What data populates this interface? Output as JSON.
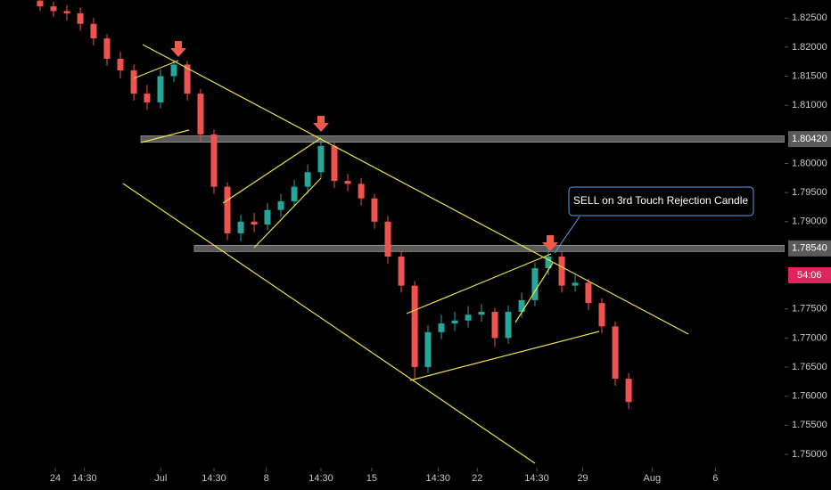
{
  "chart_data": {
    "type": "candlestick",
    "x": [
      -1.01,
      -0.12,
      0.77,
      1.66,
      2.54,
      3.43,
      4.32,
      5.21,
      6.09,
      6.98,
      7.87,
      8.76,
      9.64,
      10.53,
      11.42,
      12.31,
      13.2,
      14.08,
      14.97,
      15.86,
      16.75,
      17.63,
      18.52,
      19.41,
      20.3,
      21.18,
      22.07,
      22.96,
      23.85,
      24.73,
      25.62,
      26.51,
      27.4,
      28.28,
      29.17,
      30.06,
      30.95,
      31.83,
      32.72,
      33.61,
      34.5,
      35.38,
      36.27,
      37.16,
      38.05
    ],
    "open": [
      1.828,
      1.827,
      1.8262,
      1.8258,
      1.824,
      1.8215,
      1.818,
      1.816,
      1.812,
      1.8105,
      1.815,
      1.817,
      1.812,
      1.805,
      1.796,
      1.788,
      1.79,
      1.7895,
      1.792,
      1.7935,
      1.796,
      1.7985,
      1.803,
      1.797,
      1.7965,
      1.794,
      1.79,
      1.784,
      1.779,
      1.765,
      1.771,
      1.7725,
      1.773,
      1.774,
      1.7745,
      1.77,
      1.7745,
      1.7765,
      1.782,
      1.784,
      1.779,
      1.7795,
      1.776,
      1.772,
      1.763
    ],
    "high": [
      1.8281,
      1.8278,
      1.8272,
      1.8268,
      1.825,
      1.8222,
      1.8192,
      1.817,
      1.8135,
      1.8162,
      1.8178,
      1.8176,
      1.8128,
      1.8058,
      1.7968,
      1.7912,
      1.7915,
      1.7932,
      1.7948,
      1.7972,
      1.7998,
      1.8042,
      1.8036,
      1.7982,
      1.7975,
      1.7948,
      1.791,
      1.7848,
      1.7798,
      1.7722,
      1.774,
      1.7745,
      1.7755,
      1.7758,
      1.7752,
      1.7756,
      1.7778,
      1.783,
      1.7858,
      1.7848,
      1.7808,
      1.7802,
      1.7768,
      1.7728,
      1.764
    ],
    "low": [
      1.8262,
      1.8252,
      1.8246,
      1.8228,
      1.8203,
      1.8168,
      1.8146,
      1.8108,
      1.8092,
      1.8095,
      1.814,
      1.8108,
      1.8038,
      1.7948,
      1.7868,
      1.7866,
      1.7882,
      1.7885,
      1.7908,
      1.7925,
      1.7948,
      1.7975,
      1.7958,
      1.7952,
      1.7928,
      1.7888,
      1.7828,
      1.7778,
      1.7628,
      1.764,
      1.7698,
      1.7712,
      1.7718,
      1.7728,
      1.7685,
      1.769,
      1.7735,
      1.7755,
      1.7808,
      1.7778,
      1.778,
      1.7748,
      1.7708,
      1.7618,
      1.7578
    ],
    "close": [
      1.827,
      1.8262,
      1.8258,
      1.824,
      1.8215,
      1.818,
      1.816,
      1.812,
      1.8105,
      1.815,
      1.817,
      1.812,
      1.805,
      1.796,
      1.788,
      1.79,
      1.7895,
      1.792,
      1.7935,
      1.796,
      1.7985,
      1.803,
      1.797,
      1.7965,
      1.794,
      1.79,
      1.784,
      1.779,
      1.765,
      1.771,
      1.7725,
      1.773,
      1.774,
      1.7745,
      1.77,
      1.7745,
      1.7765,
      1.782,
      1.784,
      1.779,
      1.7795,
      1.776,
      1.772,
      1.763,
      1.759
    ],
    "up_color": "#26a69a",
    "down_color": "#ef5350",
    "xlim": [
      -3.67,
      48.4
    ],
    "xticks": [
      {
        "value": 0,
        "label": "24"
      },
      {
        "value": 1.94,
        "label": "14:30"
      },
      {
        "value": 7,
        "label": "Jul"
      },
      {
        "value": 10.53,
        "label": "14:30"
      },
      {
        "value": 14,
        "label": "8"
      },
      {
        "value": 17.63,
        "label": "14:30"
      },
      {
        "value": 21,
        "label": "15"
      },
      {
        "value": 25.4,
        "label": "14:30"
      },
      {
        "value": 28,
        "label": "22"
      },
      {
        "value": 31.95,
        "label": "14:30"
      },
      {
        "value": 35,
        "label": "29"
      },
      {
        "value": 39.6,
        "label": "Aug"
      },
      {
        "value": 43.8,
        "label": "6"
      }
    ],
    "ylim": [
      1.7477,
      1.8281
    ],
    "yticks": [
      {
        "value": 1.825,
        "label": "1.82500"
      },
      {
        "value": 1.82,
        "label": "1.82000"
      },
      {
        "value": 1.815,
        "label": "1.81500"
      },
      {
        "value": 1.81,
        "label": "1.81000"
      },
      {
        "value": 1.8,
        "label": "1.80000"
      },
      {
        "value": 1.795,
        "label": "1.79500"
      },
      {
        "value": 1.79,
        "label": "1.79000"
      },
      {
        "value": 1.775,
        "label": "1.77500"
      },
      {
        "value": 1.77,
        "label": "1.77000"
      },
      {
        "value": 1.765,
        "label": "1.76500"
      },
      {
        "value": 1.76,
        "label": "1.76000"
      },
      {
        "value": 1.755,
        "label": "1.75500"
      },
      {
        "value": 1.75,
        "label": "1.75000"
      }
    ],
    "levels": [
      {
        "value": 1.8042,
        "label": "1.80420"
      },
      {
        "value": 1.7854,
        "label": "1.78540"
      }
    ],
    "countdown": "54:06",
    "annotation": "SELL on 3rd Touch Rejection Candle"
  }
}
